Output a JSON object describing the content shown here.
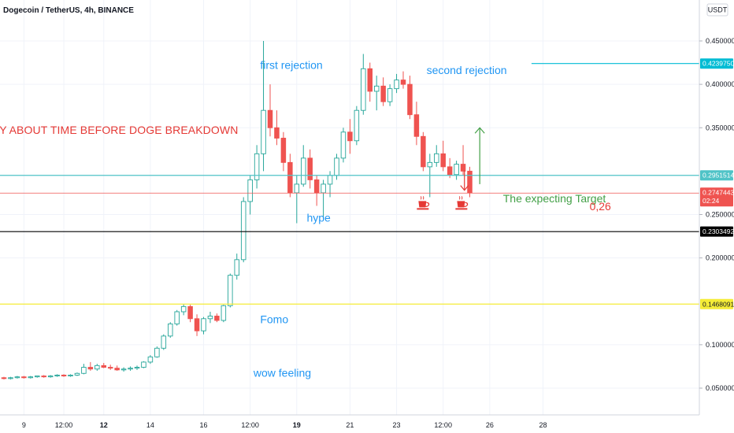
{
  "chart_data": {
    "type": "candlestick",
    "title": "Dogecoin / TetherUS, 4h, BINANCE",
    "currency": "USDT",
    "ylim": [
      0.02,
      0.46
    ],
    "y_ticks": [
      {
        "v": 0.45,
        "label": "0.4500000"
      },
      {
        "v": 0.4,
        "label": "0.4000000"
      },
      {
        "v": 0.35,
        "label": "0.3500000"
      },
      {
        "v": 0.25,
        "label": "0.2500000"
      },
      {
        "v": 0.2,
        "label": "0.2000000"
      },
      {
        "v": 0.1,
        "label": "0.1000000"
      },
      {
        "v": 0.05,
        "label": "0.0500000"
      }
    ],
    "x_ticks": [
      {
        "i": 3,
        "label": "9",
        "bold": false
      },
      {
        "i": 9,
        "label": "12:00",
        "bold": false
      },
      {
        "i": 15,
        "label": "12",
        "bold": true
      },
      {
        "i": 22,
        "label": "14",
        "bold": false
      },
      {
        "i": 30,
        "label": "16",
        "bold": false
      },
      {
        "i": 37,
        "label": "12:00",
        "bold": false
      },
      {
        "i": 44,
        "label": "19",
        "bold": true
      },
      {
        "i": 52,
        "label": "21",
        "bold": false
      },
      {
        "i": 59,
        "label": "23",
        "bold": false
      },
      {
        "i": 66,
        "label": "12:00",
        "bold": false
      },
      {
        "i": 73,
        "label": "26",
        "bold": false
      },
      {
        "i": 81,
        "label": "28",
        "bold": false
      }
    ],
    "candles": [
      [
        0.062,
        0.063,
        0.06,
        0.061
      ],
      [
        0.061,
        0.063,
        0.06,
        0.062
      ],
      [
        0.062,
        0.064,
        0.061,
        0.063
      ],
      [
        0.063,
        0.064,
        0.061,
        0.062
      ],
      [
        0.062,
        0.064,
        0.061,
        0.063
      ],
      [
        0.063,
        0.064,
        0.062,
        0.064
      ],
      [
        0.064,
        0.065,
        0.062,
        0.063
      ],
      [
        0.063,
        0.065,
        0.062,
        0.064
      ],
      [
        0.064,
        0.066,
        0.063,
        0.065
      ],
      [
        0.065,
        0.066,
        0.063,
        0.064
      ],
      [
        0.064,
        0.066,
        0.063,
        0.065
      ],
      [
        0.065,
        0.068,
        0.064,
        0.067
      ],
      [
        0.067,
        0.078,
        0.066,
        0.074
      ],
      [
        0.074,
        0.08,
        0.07,
        0.072
      ],
      [
        0.072,
        0.078,
        0.07,
        0.076
      ],
      [
        0.076,
        0.079,
        0.073,
        0.074
      ],
      [
        0.074,
        0.077,
        0.071,
        0.073
      ],
      [
        0.073,
        0.076,
        0.07,
        0.071
      ],
      [
        0.071,
        0.074,
        0.069,
        0.072
      ],
      [
        0.072,
        0.075,
        0.07,
        0.073
      ],
      [
        0.073,
        0.076,
        0.071,
        0.074
      ],
      [
        0.074,
        0.081,
        0.073,
        0.08
      ],
      [
        0.08,
        0.088,
        0.078,
        0.086
      ],
      [
        0.086,
        0.098,
        0.085,
        0.096
      ],
      [
        0.096,
        0.112,
        0.094,
        0.11
      ],
      [
        0.11,
        0.126,
        0.108,
        0.124
      ],
      [
        0.124,
        0.14,
        0.122,
        0.138
      ],
      [
        0.138,
        0.147,
        0.134,
        0.144
      ],
      [
        0.144,
        0.146,
        0.126,
        0.13
      ],
      [
        0.13,
        0.135,
        0.11,
        0.116
      ],
      [
        0.116,
        0.132,
        0.112,
        0.13
      ],
      [
        0.13,
        0.138,
        0.125,
        0.133
      ],
      [
        0.133,
        0.136,
        0.126,
        0.128
      ],
      [
        0.128,
        0.146,
        0.126,
        0.145
      ],
      [
        0.145,
        0.182,
        0.143,
        0.18
      ],
      [
        0.18,
        0.205,
        0.175,
        0.198
      ],
      [
        0.198,
        0.27,
        0.195,
        0.265
      ],
      [
        0.265,
        0.295,
        0.25,
        0.29
      ],
      [
        0.29,
        0.33,
        0.28,
        0.32
      ],
      [
        0.32,
        0.45,
        0.3,
        0.37
      ],
      [
        0.37,
        0.4,
        0.34,
        0.35
      ],
      [
        0.35,
        0.37,
        0.33,
        0.338
      ],
      [
        0.338,
        0.345,
        0.3,
        0.31
      ],
      [
        0.31,
        0.32,
        0.27,
        0.275
      ],
      [
        0.275,
        0.295,
        0.24,
        0.285
      ],
      [
        0.285,
        0.33,
        0.282,
        0.315
      ],
      [
        0.315,
        0.325,
        0.28,
        0.29
      ],
      [
        0.29,
        0.295,
        0.26,
        0.275
      ],
      [
        0.275,
        0.29,
        0.245,
        0.285
      ],
      [
        0.285,
        0.3,
        0.27,
        0.295
      ],
      [
        0.295,
        0.32,
        0.29,
        0.315
      ],
      [
        0.315,
        0.35,
        0.31,
        0.345
      ],
      [
        0.345,
        0.36,
        0.32,
        0.335
      ],
      [
        0.335,
        0.375,
        0.33,
        0.37
      ],
      [
        0.37,
        0.435,
        0.365,
        0.418
      ],
      [
        0.418,
        0.425,
        0.38,
        0.392
      ],
      [
        0.392,
        0.41,
        0.37,
        0.398
      ],
      [
        0.398,
        0.408,
        0.375,
        0.38
      ],
      [
        0.38,
        0.4,
        0.375,
        0.395
      ],
      [
        0.395,
        0.412,
        0.39,
        0.405
      ],
      [
        0.405,
        0.415,
        0.395,
        0.4
      ],
      [
        0.4,
        0.41,
        0.36,
        0.365
      ],
      [
        0.365,
        0.38,
        0.33,
        0.34
      ],
      [
        0.34,
        0.345,
        0.3,
        0.305
      ],
      [
        0.305,
        0.32,
        0.27,
        0.31
      ],
      [
        0.31,
        0.33,
        0.305,
        0.32
      ],
      [
        0.32,
        0.335,
        0.3,
        0.305
      ],
      [
        0.305,
        0.315,
        0.292,
        0.296
      ],
      [
        0.296,
        0.312,
        0.29,
        0.308
      ],
      [
        0.308,
        0.33,
        0.295,
        0.3
      ],
      [
        0.3,
        0.305,
        0.27,
        0.275
      ]
    ],
    "hlines": [
      {
        "value": 0.423975,
        "label": "0.4239750",
        "color": "#00bcd4",
        "x_start_frac": 0.76
      },
      {
        "value": 0.2951514,
        "label": "0.2951514",
        "color": "#4fc3c7",
        "x_start_frac": 0.0
      },
      {
        "value": 0.2747443,
        "label": "0.2747443",
        "sub": "02:24",
        "color": "#ef5350",
        "x_start_frac": 0.0
      },
      {
        "value": 0.2303492,
        "label": "0.2303492",
        "color": "#000000",
        "x_start_frac": 0.0
      },
      {
        "value": 0.1468091,
        "label": "0.1468091",
        "color": "#f5ec37",
        "x_start_frac": 0.0
      }
    ],
    "annotations": [
      {
        "text": "first rejection",
        "color": "#2196f3",
        "i": 38.5,
        "v": 0.418
      },
      {
        "text": "second rejection",
        "color": "#2196f3",
        "i": 63.5,
        "v": 0.412
      },
      {
        "text": "LY ABOUT TIME BEFORE DOGE BREAKDOWN",
        "color": "#e53935",
        "i": -1.5,
        "v": 0.343,
        "big": true
      },
      {
        "text": "hype",
        "color": "#2196f3",
        "i": 45.5,
        "v": 0.242
      },
      {
        "text": "Fomo",
        "color": "#2196f3",
        "i": 38.5,
        "v": 0.125
      },
      {
        "text": "wow feeling",
        "color": "#2196f3",
        "i": 37.5,
        "v": 0.063
      },
      {
        "text": "The expecting Target",
        "color": "#43a047",
        "i": 75,
        "v": 0.264
      },
      {
        "text": "0,26",
        "color": "#e53935",
        "i": 88,
        "v": 0.255
      }
    ],
    "cup_icons": [
      {
        "i": 63,
        "v": 0.261
      },
      {
        "i": 68.8,
        "v": 0.261
      }
    ],
    "arrow_up": {
      "i": 71.5,
      "from": 0.285,
      "to": 0.35,
      "color": "#43a047"
    },
    "arrow_down": {
      "i": 69.2,
      "from": 0.301,
      "to": 0.278,
      "color": "#e53935"
    }
  }
}
